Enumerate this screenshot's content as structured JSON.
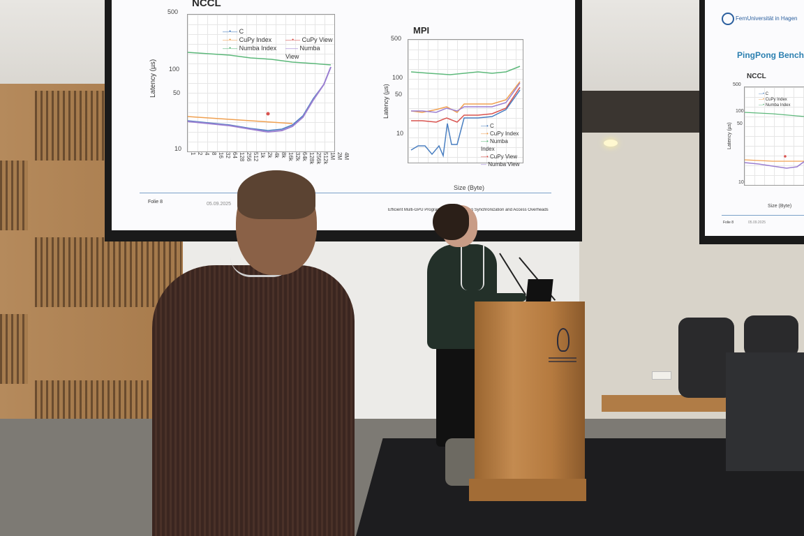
{
  "main_slide": {
    "left_chart_title": "NCCL",
    "right_chart_title": "MPI",
    "left_yticks": [
      "500",
      "100",
      "50",
      "10"
    ],
    "right_yticks": [
      "500",
      "100",
      "50",
      "10"
    ],
    "left_ylabel": "Latency (µs)",
    "right_ylabel": "Latency (µs)",
    "right_xlabel": "Size (Byte)",
    "left_xticks": [
      "1",
      "2",
      "4",
      "8",
      "16",
      "32",
      "64",
      "128",
      "256",
      "512",
      "1k",
      "2k",
      "4k",
      "8k",
      "16k",
      "32k",
      "64k",
      "128k",
      "256k",
      "512k",
      "1M",
      "2M",
      "4M"
    ],
    "left_legend": [
      "C",
      "CuPy Index",
      "Numba Index",
      "CuPy View",
      "Numba View"
    ],
    "right_legend": [
      "C",
      "CuPy Index",
      "Numba Index",
      "CuPy View",
      "Numba View"
    ],
    "footer_label": "Folie  8",
    "footer_date": "05.09.2025",
    "footer_title": "Efficient Multi-GPU Programming ... Reducing Synchronization and Access Overheads"
  },
  "side_slide": {
    "logo_text": "FernUniversität in Hagen",
    "title": "PingPong Benchark M",
    "chart_title": "NCCL",
    "ylabel": "Latency (µs)",
    "xlabel": "Size (Byte)",
    "yticks": [
      "500",
      "100",
      "50",
      "10"
    ],
    "legend": [
      "C",
      "CuPy Index",
      "Numba Index"
    ],
    "footer_label": "Folie  8",
    "footer_date": "05.09.2025"
  },
  "colors": {
    "series_c": "#4a7fc1",
    "series_cupy_index": "#f0a050",
    "series_numba_index": "#5cb87a",
    "series_cupy_view": "#d9534f",
    "series_numba_view": "#9b7fd1"
  }
}
